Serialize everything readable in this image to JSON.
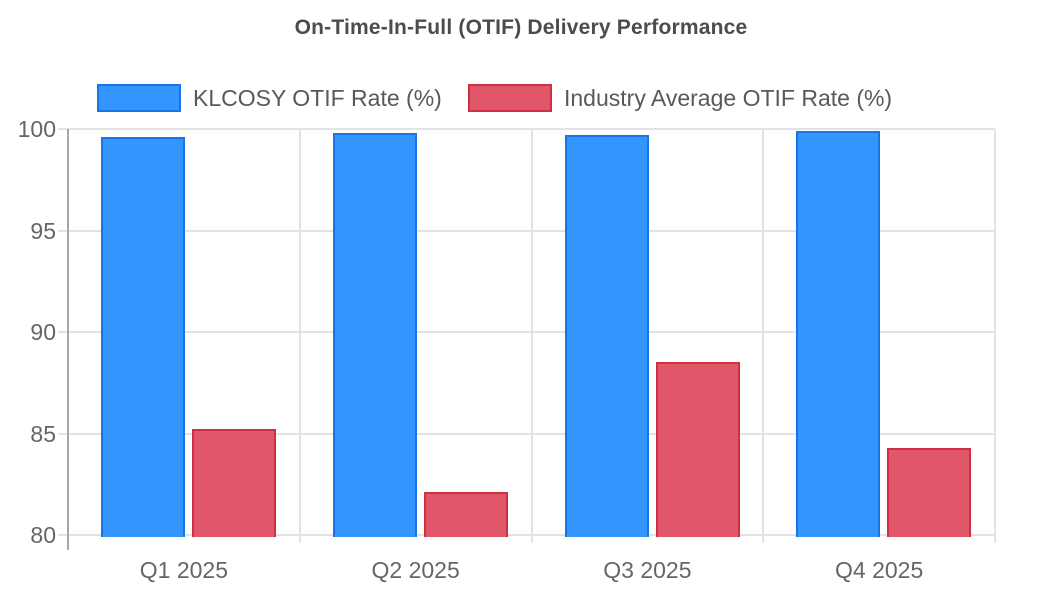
{
  "chart_data": {
    "type": "bar",
    "title": "On-Time-In-Full (OTIF) Delivery Performance",
    "categories": [
      "Q1 2025",
      "Q2 2025",
      "Q3 2025",
      "Q4 2025"
    ],
    "series": [
      {
        "name": "KLCOSY OTIF Rate (%)",
        "values": [
          99.6,
          99.8,
          99.7,
          99.9
        ],
        "fill": "#3396FF",
        "stroke": "#1A73E8"
      },
      {
        "name": "Industry Average OTIF Rate (%)",
        "values": [
          85.2,
          82.1,
          88.5,
          84.3
        ],
        "fill": "#E0566A",
        "stroke": "#D02F3F"
      }
    ],
    "ylim": [
      80,
      100
    ],
    "yticks": [
      100,
      95,
      90,
      85,
      80
    ],
    "grid": true,
    "legend_position": "top",
    "colors": {
      "background": "#FFFFFF",
      "gridline": "#E3E3E3",
      "axis_line": "#A6A6A6",
      "title_text": "#4C4C4C",
      "axis_text": "#666666",
      "legend_text": "#595959"
    }
  }
}
